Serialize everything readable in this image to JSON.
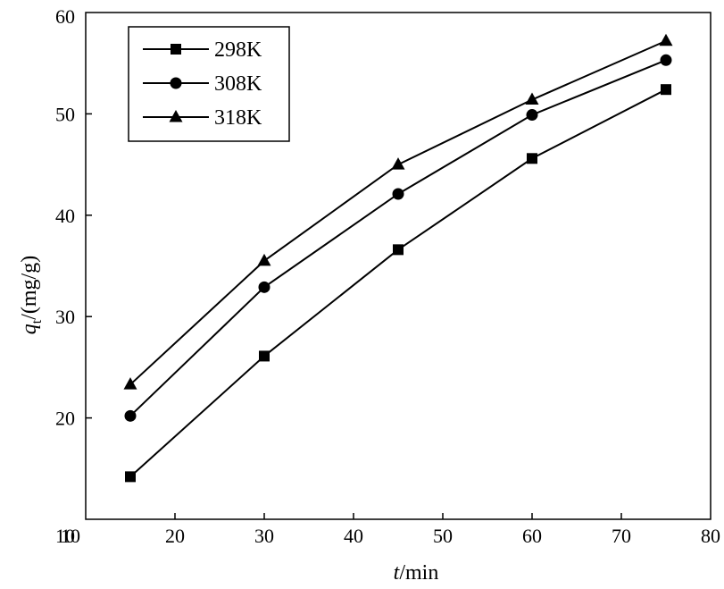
{
  "chart_data": {
    "type": "line",
    "x": [
      15,
      30,
      45,
      60,
      75
    ],
    "series": [
      {
        "name": "298K",
        "marker": "square",
        "values": [
          14.2,
          26.1,
          36.6,
          45.6,
          52.4
        ]
      },
      {
        "name": "308K",
        "marker": "circle",
        "values": [
          20.2,
          32.9,
          42.1,
          49.9,
          55.3
        ]
      },
      {
        "name": "318K",
        "marker": "triangle",
        "values": [
          23.3,
          35.5,
          45.0,
          51.4,
          57.2
        ]
      }
    ],
    "xlabel": {
      "italic": "t",
      "rest": "/min"
    },
    "ylabel": {
      "italic": "q",
      "subscript": "t",
      "rest": "/(mg/g)"
    },
    "xlim": [
      10,
      80
    ],
    "ylim": [
      10,
      60
    ],
    "xticks": [
      10,
      20,
      30,
      40,
      50,
      60,
      70,
      80
    ],
    "yticks": [
      10,
      20,
      30,
      40,
      50,
      60
    ],
    "grid": false,
    "legend_position": "top-left",
    "line_color": "#000000"
  }
}
